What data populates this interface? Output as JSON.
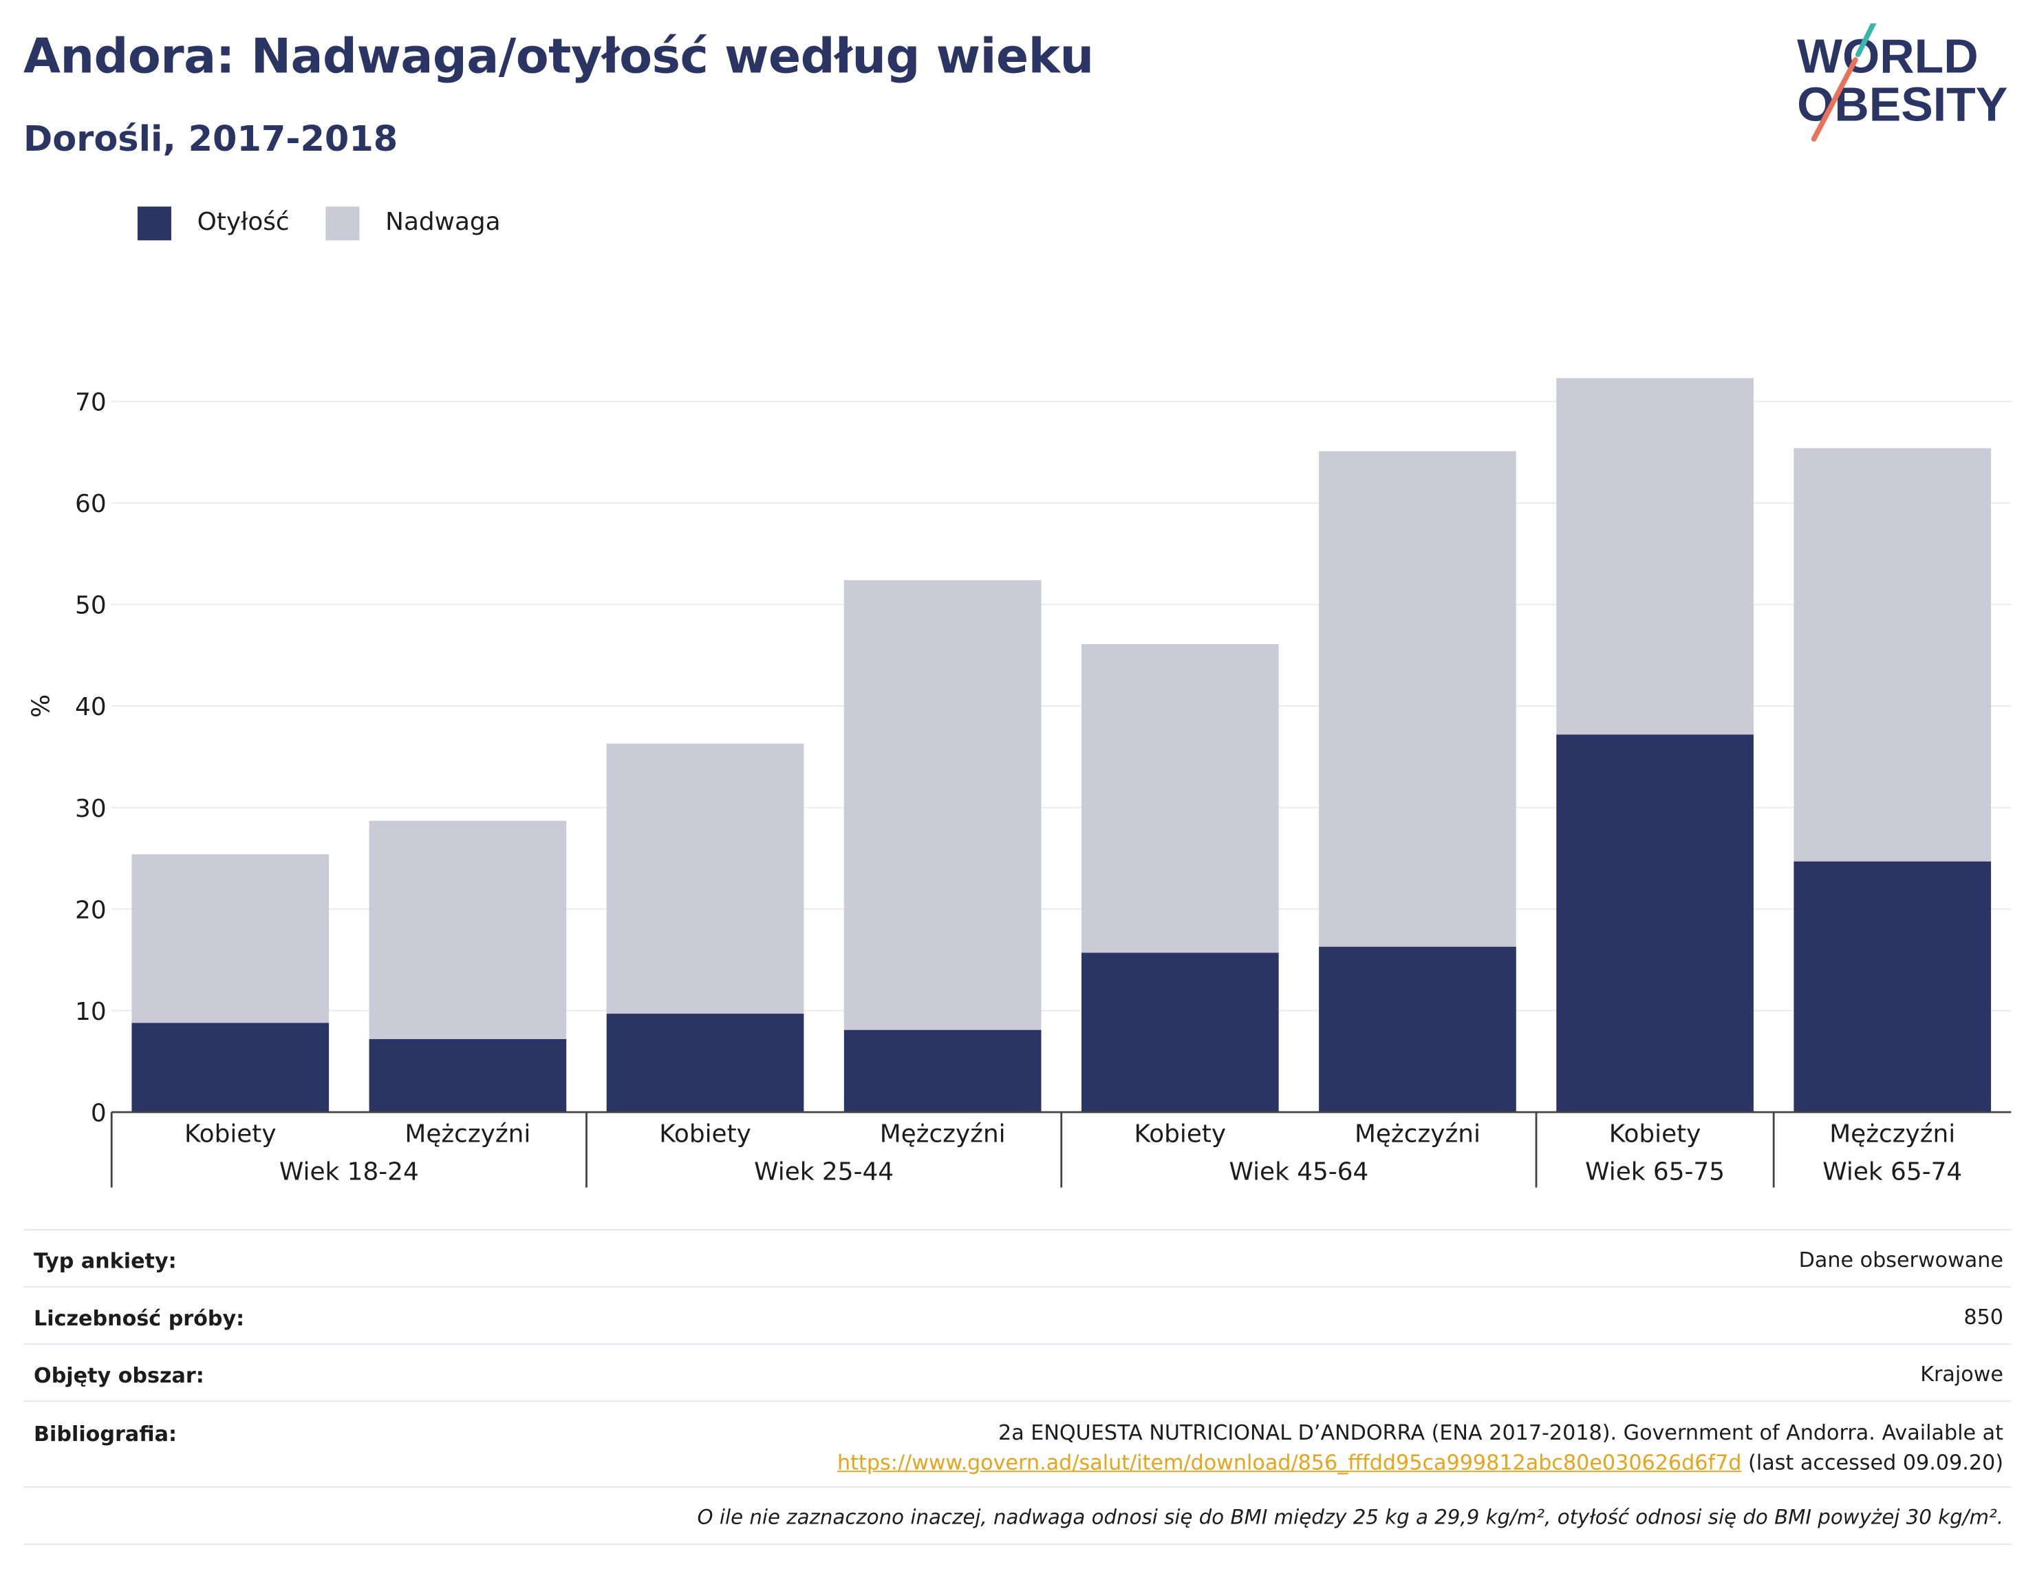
{
  "header": {
    "title": "Andora: Nadwaga/otyłość według wieku",
    "subtitle": "Dorośli, 2017-2018",
    "logo_line1": "WORLD",
    "logo_line2": "OBESITY"
  },
  "legend": [
    {
      "label": "Otyłość",
      "color": "#2b3563"
    },
    {
      "label": "Nadwaga",
      "color": "#cacbd7"
    }
  ],
  "chart_data": {
    "type": "bar",
    "stacked": true,
    "ylabel": "%",
    "ylim": [
      0,
      75
    ],
    "yticks": [
      0,
      10,
      20,
      30,
      40,
      50,
      60,
      70
    ],
    "grid": true,
    "legend_position": "top-left",
    "categories": [
      "Kobiety",
      "Mężczyźni",
      "Kobiety",
      "Mężczyźni",
      "Kobiety",
      "Mężczyźni",
      "Kobiety",
      "Mężczyźni"
    ],
    "groups": [
      {
        "label": "Wiek 18-24",
        "members": [
          0,
          1
        ]
      },
      {
        "label": "Wiek 25-44",
        "members": [
          2,
          3
        ]
      },
      {
        "label": "Wiek 45-64",
        "members": [
          4,
          5
        ]
      },
      {
        "label": "Wiek 65-75",
        "members": [
          6
        ]
      },
      {
        "label": "Wiek 65-74",
        "members": [
          7
        ]
      }
    ],
    "series": [
      {
        "name": "Otyłość",
        "color": "#2b3563",
        "values": [
          8.8,
          7.2,
          9.7,
          8.1,
          15.7,
          16.3,
          37.2,
          24.7
        ]
      },
      {
        "name": "Nadwaga",
        "color": "#cacbd7",
        "values": [
          16.6,
          21.5,
          26.6,
          44.3,
          30.4,
          48.8,
          35.1,
          40.7
        ]
      }
    ]
  },
  "info": [
    {
      "key": "Typ ankiety:",
      "value": "Dane obserwowane"
    },
    {
      "key": "Liczebność próby:",
      "value": "850"
    },
    {
      "key": "Objęty obszar:",
      "value": "Krajowe"
    },
    {
      "key": "Bibliografia:",
      "value": "2a ENQUESTA NUTRICIONAL D’ANDORRA (ENA 2017-2018). Government of Andorra. Available at",
      "link": "https://www.govern.ad/salut/item/download/856_fffdd95ca999812abc80e030626d6f7d",
      "suffix": " (last accessed 09.09.20)"
    }
  ],
  "footnote": "O ile nie zaznaczono inaczej, nadwaga odnosi się do BMI między 25 kg a 29,9 kg/m², otyłość odnosi się do BMI powyżej 30 kg/m²."
}
